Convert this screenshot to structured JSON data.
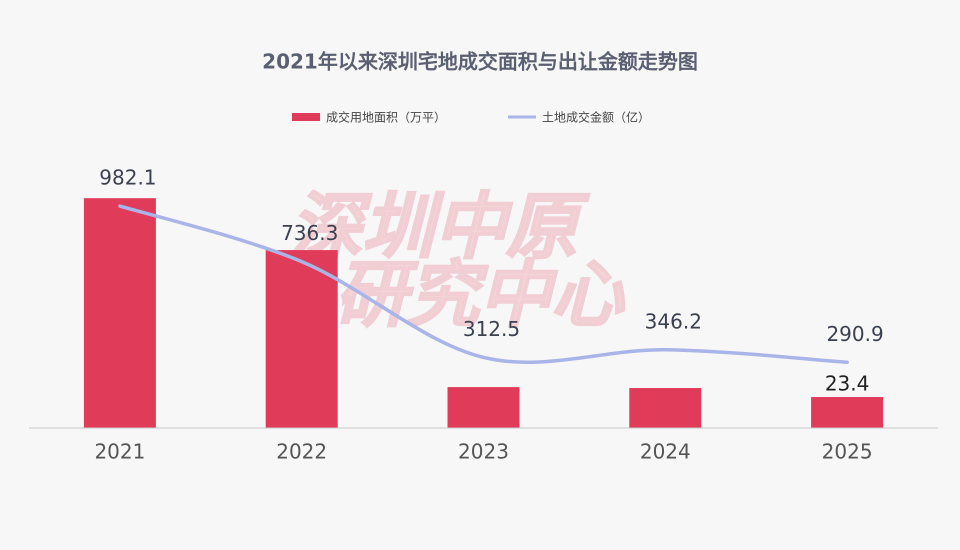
{
  "chart_data": {
    "type": "bar-line",
    "title": "2021年以来深圳宅地成交面积与出让金额走势图",
    "watermark": [
      "深圳中原",
      "研究中心"
    ],
    "categories": [
      "2021",
      "2022",
      "2023",
      "2024",
      "2025"
    ],
    "series": [
      {
        "name": "成交用地面积（万平）",
        "type": "bar",
        "color": "#e03c5a",
        "values": [
          173.6,
          134.4,
          30.9,
          30.2,
          23.4
        ],
        "value_labels": [
          null,
          null,
          null,
          null,
          "23.4"
        ]
      },
      {
        "name": "土地成交金额（亿）",
        "type": "line",
        "axis": "y2",
        "color": "#a9b4e8",
        "values": [
          982.1,
          736.3,
          312.5,
          346.2,
          290.9
        ]
      }
    ],
    "ylim": [
      0,
      210
    ],
    "y2lim": [
      0,
      1230
    ]
  }
}
